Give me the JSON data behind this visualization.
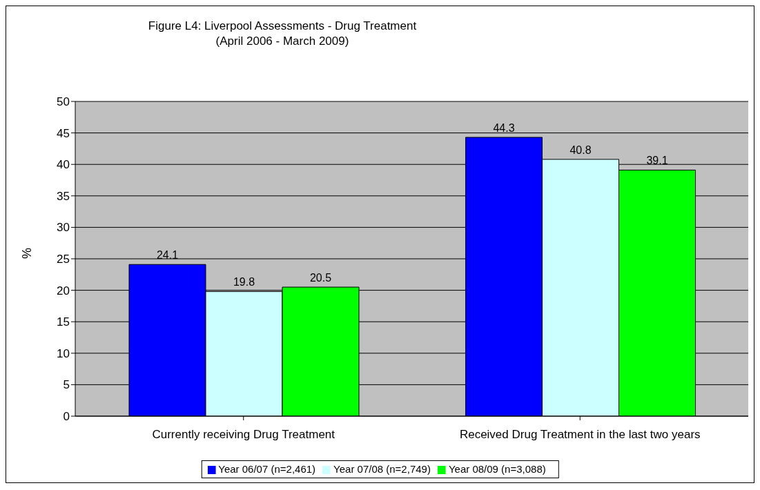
{
  "chart_data": {
    "type": "bar",
    "title": "Figure L4: Liverpool Assessments - Drug Treatment\n(April 2006 - March 2009)",
    "categories": [
      "Currently receiving Drug Treatment",
      "Received Drug Treatment in the last two years"
    ],
    "series": [
      {
        "name": "Year 06/07 (n=2,461)",
        "color": "#0000ff",
        "values": [
          24.1,
          44.3
        ]
      },
      {
        "name": "Year 07/08 (n=2,749)",
        "color": "#ccffff",
        "values": [
          19.8,
          40.8
        ]
      },
      {
        "name": "Year 08/09 (n=3,088)",
        "color": "#00ff00",
        "values": [
          20.5,
          39.1
        ]
      }
    ],
    "ylabel": "%",
    "ylim": [
      0,
      50
    ],
    "yticks": [
      0,
      5,
      10,
      15,
      20,
      25,
      30,
      35,
      40,
      45,
      50
    ],
    "grid": "y",
    "legend": "bottom",
    "data_labels": true
  }
}
